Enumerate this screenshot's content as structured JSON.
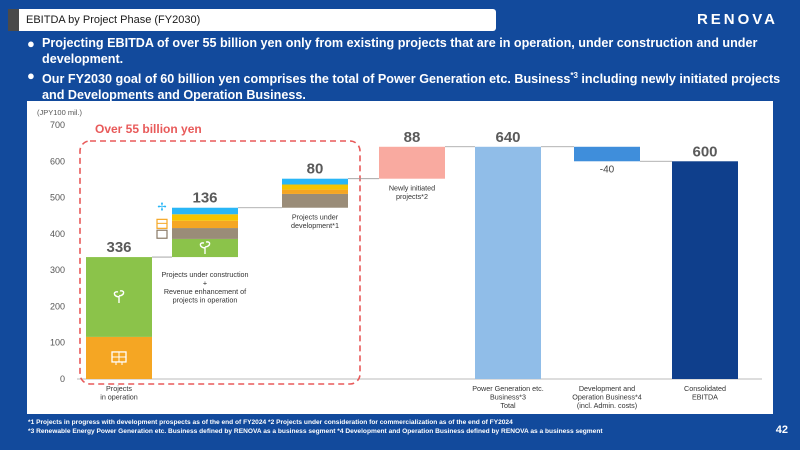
{
  "header": {
    "title": "EBITDA by Project Phase (FY2030)",
    "logo_text": "RENOVA"
  },
  "bullets": [
    {
      "text": "Projecting EBITDA of over 55 billion yen only from existing projects that are in operation, under construction and under development.",
      "sup": ""
    },
    {
      "text": "Our FY2030 goal of 60 billion yen comprises the total of Power Generation etc. Business",
      "sup": "*3",
      "text_after": " including newly initiated projects and Developments and Operation Business."
    }
  ],
  "chart_data": {
    "type": "waterfall",
    "unit_label": "(JPY100 mil.)",
    "ylim": [
      0,
      700
    ],
    "yticks": [
      0,
      100,
      200,
      300,
      400,
      500,
      600,
      700
    ],
    "highlight_label": "Over 55 billion yen",
    "colors": {
      "green": "#8bc34a",
      "orange": "#f5a623",
      "brown": "#9a8c78",
      "yellow": "#f5c400",
      "cyan": "#29b6f6",
      "pink": "#f9aaa0",
      "light_blue": "#90bde8",
      "mid_blue": "#3f8edb",
      "navy": "#0f3f8c",
      "dashed_red": "#e85a5a",
      "value_gray": "#5a5a5a"
    },
    "bars": [
      {
        "label_lines": [
          "Projects",
          "in operation"
        ],
        "label_pos": "below",
        "value_label": "336",
        "base": 0,
        "segments": [
          {
            "value": 116,
            "color": "orange",
            "icon": "solar-panel-icon"
          },
          {
            "value": 220,
            "color": "green",
            "icon": "sprout-icon"
          }
        ]
      },
      {
        "label_lines": [
          "Projects under construction",
          "+",
          "Revenue enhancement of",
          "projects in operation"
        ],
        "label_pos": "below-bar",
        "value_label": "136",
        "base": 336,
        "segments": [
          {
            "value": 50,
            "color": "green",
            "icon": "sprout-icon"
          },
          {
            "value": 30,
            "color": "brown"
          },
          {
            "value": 20,
            "color": "orange"
          },
          {
            "value": 18,
            "color": "yellow"
          },
          {
            "value": 18,
            "color": "cyan"
          }
        ]
      },
      {
        "label_lines": [
          "Projects under",
          "development*1"
        ],
        "label_pos": "below-bar",
        "value_label": "80",
        "base": 472,
        "segments": [
          {
            "value": 38,
            "color": "brown"
          },
          {
            "value": 12,
            "color": "orange"
          },
          {
            "value": 14,
            "color": "yellow"
          },
          {
            "value": 16,
            "color": "cyan"
          }
        ]
      },
      {
        "label_lines": [
          "Newly initiated",
          "projects*2"
        ],
        "label_pos": "below-bar",
        "value_label": "88",
        "base": 552,
        "segments": [
          {
            "value": 88,
            "color": "pink"
          }
        ]
      },
      {
        "label_lines": [
          "Power Generation etc.",
          "Business*3",
          "Total"
        ],
        "label_pos": "below",
        "value_label": "640",
        "base": 0,
        "segments": [
          {
            "value": 640,
            "color": "light_blue"
          }
        ]
      },
      {
        "label_lines": [
          "Development and",
          "Operation Business*4",
          "(incl. Admin. costs)"
        ],
        "label_pos": "below",
        "value_label": "-40",
        "value_style": "small",
        "base": 600,
        "segments": [
          {
            "value": 40,
            "color": "mid_blue"
          }
        ]
      },
      {
        "label_lines": [
          "Consolidated",
          "EBITDA"
        ],
        "label_pos": "below",
        "value_label": "600",
        "base": 0,
        "segments": [
          {
            "value": 600,
            "color": "navy"
          }
        ]
      }
    ],
    "side_icons": [
      "wind-turbine-icon",
      "biomass-icon",
      "battery-icon"
    ]
  },
  "footnotes": [
    "*1 Projects in progress with development prospects as of the end of FY2024 *2 Projects under consideration for commercialization as of the end of FY2024",
    "*3 Renewable Energy Power Generation etc. Business defined by RENOVA as a business segment    *4 Development and Operation Business defined by RENOVA as a business segment"
  ],
  "page_number": "42"
}
